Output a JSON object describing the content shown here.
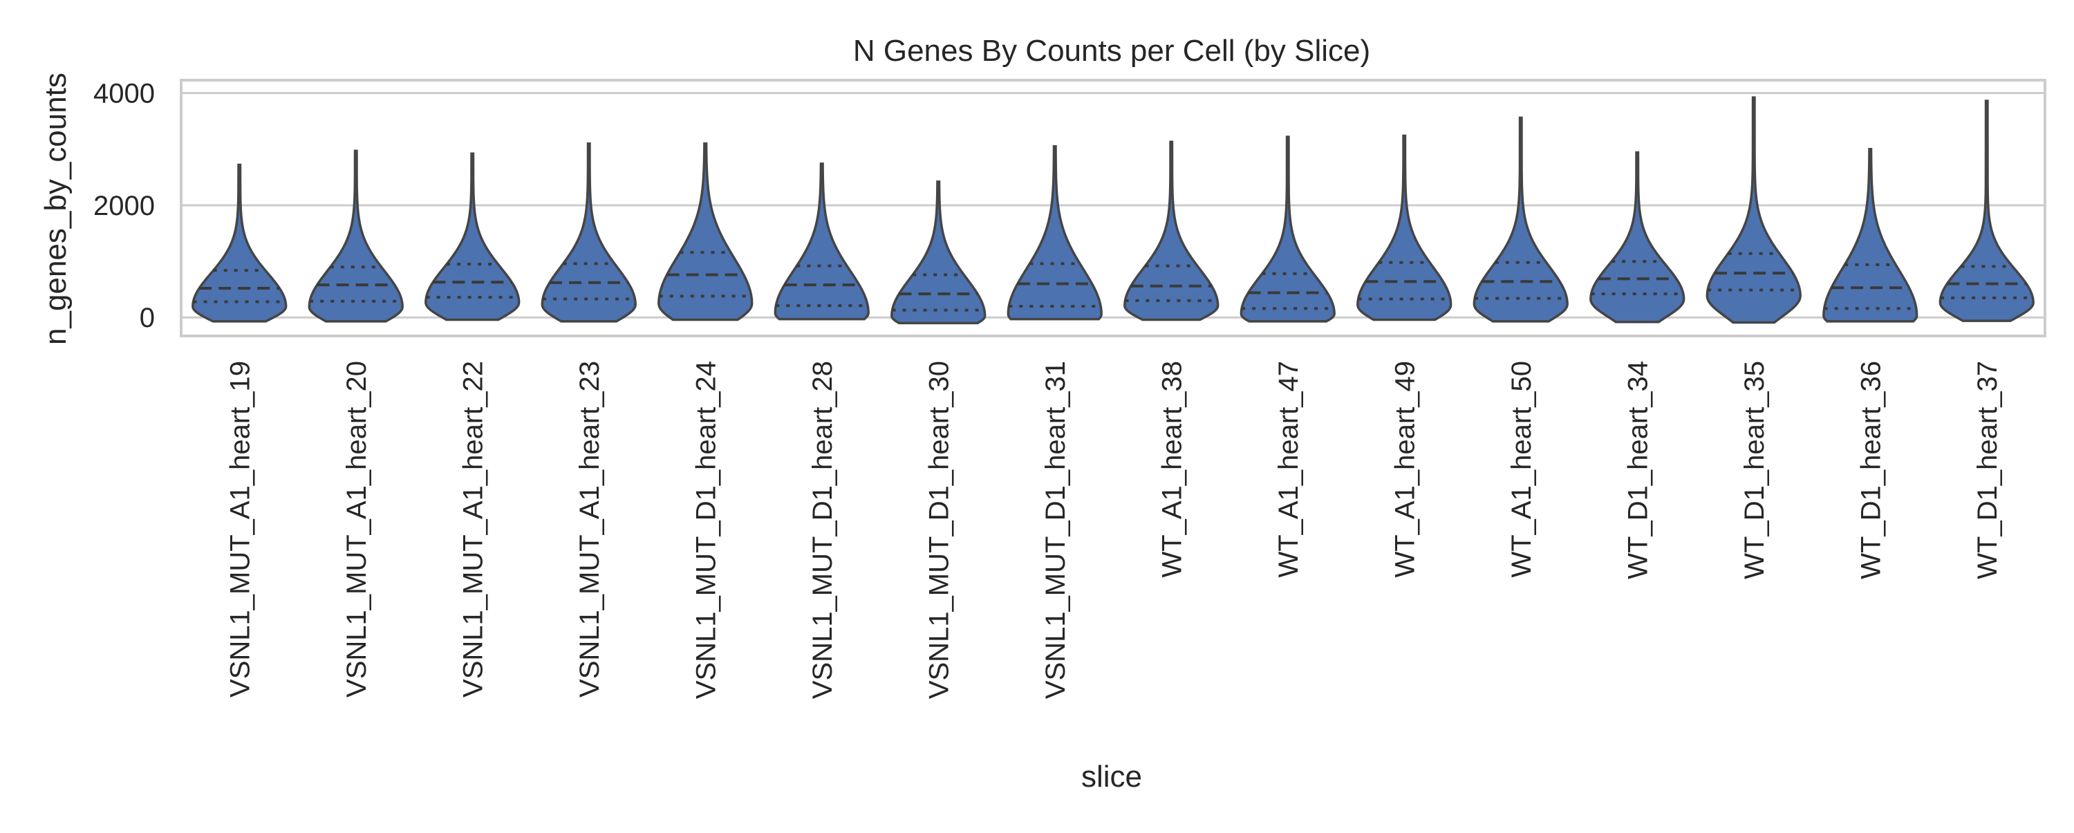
{
  "chart_data": {
    "type": "violin",
    "title": "N Genes By Counts per Cell (by Slice)",
    "xlabel": "slice",
    "ylabel": "n_genes_by_counts",
    "ylim": [
      -330,
      4230
    ],
    "yticks": [
      0,
      2000,
      4000
    ],
    "grid": true,
    "color": "#4c72b0",
    "categories": [
      "VSNL1_MUT_A1_heart_19",
      "VSNL1_MUT_A1_heart_20",
      "VSNL1_MUT_A1_heart_22",
      "VSNL1_MUT_A1_heart_23",
      "VSNL1_MUT_D1_heart_24",
      "VSNL1_MUT_D1_heart_28",
      "VSNL1_MUT_D1_heart_30",
      "VSNL1_MUT_D1_heart_31",
      "WT_A1_heart_38",
      "WT_A1_heart_47",
      "WT_A1_heart_49",
      "WT_A1_heart_50",
      "WT_D1_heart_34",
      "WT_D1_heart_35",
      "WT_D1_heart_36",
      "WT_D1_heart_37"
    ],
    "violins": [
      {
        "min": -70,
        "q1": 280,
        "median": 520,
        "q3": 840,
        "max": 2720
      },
      {
        "min": -70,
        "q1": 290,
        "median": 580,
        "q3": 900,
        "max": 2970
      },
      {
        "min": -40,
        "q1": 360,
        "median": 630,
        "q3": 950,
        "max": 2920
      },
      {
        "min": -70,
        "q1": 330,
        "median": 620,
        "q3": 960,
        "max": 3100
      },
      {
        "min": -40,
        "q1": 380,
        "median": 760,
        "q3": 1160,
        "max": 3100
      },
      {
        "min": -30,
        "q1": 210,
        "median": 580,
        "q3": 920,
        "max": 2740
      },
      {
        "min": -100,
        "q1": 130,
        "median": 420,
        "q3": 760,
        "max": 2420
      },
      {
        "min": -30,
        "q1": 200,
        "median": 600,
        "q3": 960,
        "max": 3050
      },
      {
        "min": -40,
        "q1": 300,
        "median": 560,
        "q3": 920,
        "max": 3130
      },
      {
        "min": -70,
        "q1": 160,
        "median": 440,
        "q3": 780,
        "max": 3220
      },
      {
        "min": -40,
        "q1": 330,
        "median": 640,
        "q3": 980,
        "max": 3240
      },
      {
        "min": -70,
        "q1": 340,
        "median": 640,
        "q3": 980,
        "max": 3560
      },
      {
        "min": -80,
        "q1": 420,
        "median": 690,
        "q3": 1000,
        "max": 2940
      },
      {
        "min": -90,
        "q1": 490,
        "median": 790,
        "q3": 1140,
        "max": 3920
      },
      {
        "min": -70,
        "q1": 160,
        "median": 530,
        "q3": 940,
        "max": 3000
      },
      {
        "min": -60,
        "q1": 350,
        "median": 600,
        "q3": 910,
        "max": 3860
      }
    ]
  }
}
